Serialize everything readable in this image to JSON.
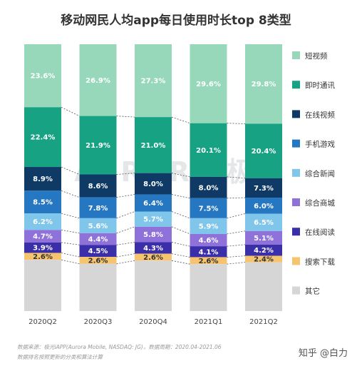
{
  "chart_data": {
    "type": "bar",
    "stacked": true,
    "percent_stacked": true,
    "title": "移动网民人均app每日使用时长top 8类型",
    "categories": [
      "2020Q2",
      "2020Q3",
      "2020Q4",
      "2021Q1",
      "2021Q2"
    ],
    "series": [
      {
        "name": "其它",
        "values": [
          null,
          null,
          null,
          null,
          null
        ],
        "color": "#d6d6d6"
      },
      {
        "name": "搜索下载",
        "values": [
          2.6,
          2.6,
          2.6,
          2.6,
          2.4
        ],
        "color": "#f6c46f"
      },
      {
        "name": "在线阅读",
        "values": [
          3.9,
          4.5,
          4.3,
          4.1,
          4.2
        ],
        "color": "#3a2fa8"
      },
      {
        "name": "综合商城",
        "values": [
          4.7,
          4.4,
          5.8,
          4.6,
          5.1
        ],
        "color": "#8e72d9"
      },
      {
        "name": "综合新闻",
        "values": [
          6.2,
          5.6,
          5.7,
          5.9,
          6.5
        ],
        "color": "#7fc6ea"
      },
      {
        "name": "手机游戏",
        "values": [
          8.5,
          7.8,
          6.4,
          7.5,
          6.0
        ],
        "color": "#2677c2"
      },
      {
        "name": "在线视频",
        "values": [
          8.9,
          8.6,
          8.0,
          8.0,
          7.3
        ],
        "color": "#0f3a66"
      },
      {
        "name": "即时通讯",
        "values": [
          22.4,
          21.9,
          21.0,
          20.1,
          20.4
        ],
        "color": "#17a383"
      },
      {
        "name": "短视频",
        "values": [
          23.6,
          26.9,
          27.3,
          29.6,
          29.8
        ],
        "color": "#97d8ba"
      }
    ],
    "legend_order": [
      "短视频",
      "即时通讯",
      "在线视频",
      "手机游戏",
      "综合新闻",
      "综合商城",
      "在线阅读",
      "搜索下载",
      "其它"
    ],
    "legend_position": "right",
    "ylim": [
      0,
      100
    ],
    "value_suffix": "%",
    "grid": false
  },
  "watermark": "AURORA 极光",
  "footnotes": {
    "source": "数据来源：极光iAPP(Aurora Mobile, NASDAQ: JG)，数据周期：2020.04-2021.06",
    "note": "数据排名按照更新的分类和算法计算"
  },
  "credit": "知乎 @白力"
}
